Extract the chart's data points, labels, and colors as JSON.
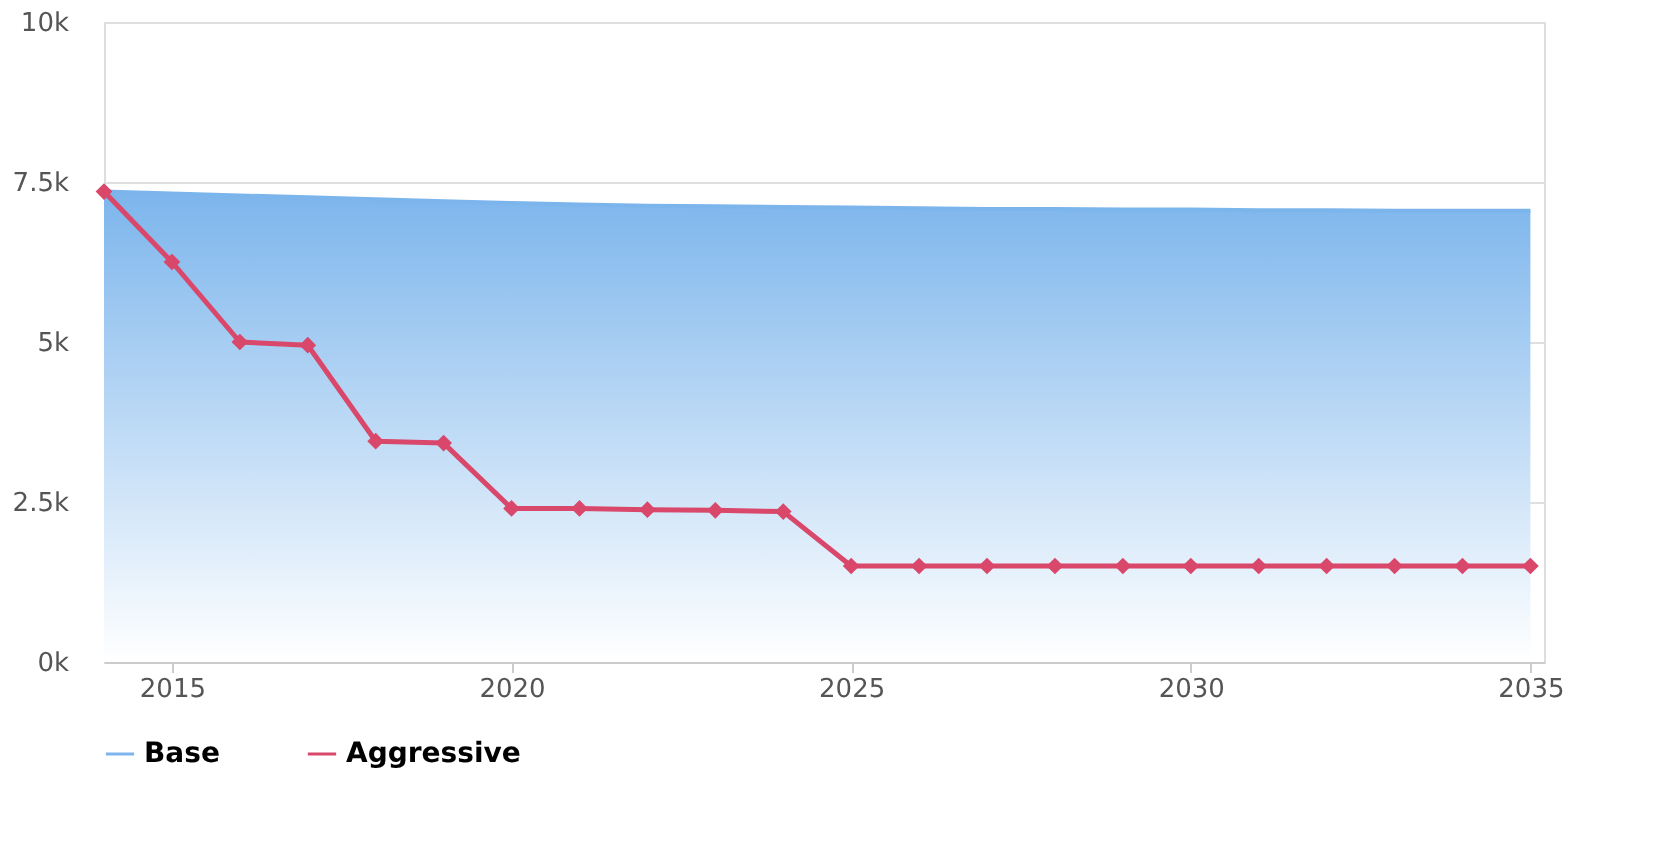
{
  "chart_data": {
    "type": "area",
    "x": [
      2014,
      2015,
      2016,
      2017,
      2018,
      2019,
      2020,
      2021,
      2022,
      2023,
      2024,
      2025,
      2026,
      2027,
      2028,
      2029,
      2030,
      2031,
      2032,
      2033,
      2034,
      2035
    ],
    "series": [
      {
        "name": "Base",
        "color": "#7cb5ec",
        "values": [
          7.35,
          7.32,
          7.29,
          7.26,
          7.23,
          7.2,
          7.17,
          7.15,
          7.13,
          7.12,
          7.11,
          7.1,
          7.09,
          7.08,
          7.08,
          7.07,
          7.07,
          7.06,
          7.06,
          7.05,
          7.05,
          7.05
        ]
      },
      {
        "name": "Aggressive",
        "type": "line",
        "color": "#d9476a",
        "marker": "diamond",
        "values": [
          7.35,
          6.25,
          5.0,
          4.95,
          3.45,
          3.42,
          2.4,
          2.4,
          2.38,
          2.37,
          2.35,
          1.5,
          1.5,
          1.5,
          1.5,
          1.5,
          1.5,
          1.5,
          1.5,
          1.5,
          1.5,
          1.5
        ]
      }
    ],
    "xlim": [
      2014,
      2035.2
    ],
    "xticks": [
      2015,
      2020,
      2025,
      2030,
      2035
    ],
    "ylim": [
      0,
      10
    ],
    "yticks": [
      {
        "value": 0,
        "label": "0k"
      },
      {
        "value": 2.5,
        "label": "2.5k"
      },
      {
        "value": 5,
        "label": "5k"
      },
      {
        "value": 7.5,
        "label": "7.5k"
      },
      {
        "value": 10,
        "label": "10k"
      }
    ],
    "grid": "y",
    "legend": "bottom"
  }
}
